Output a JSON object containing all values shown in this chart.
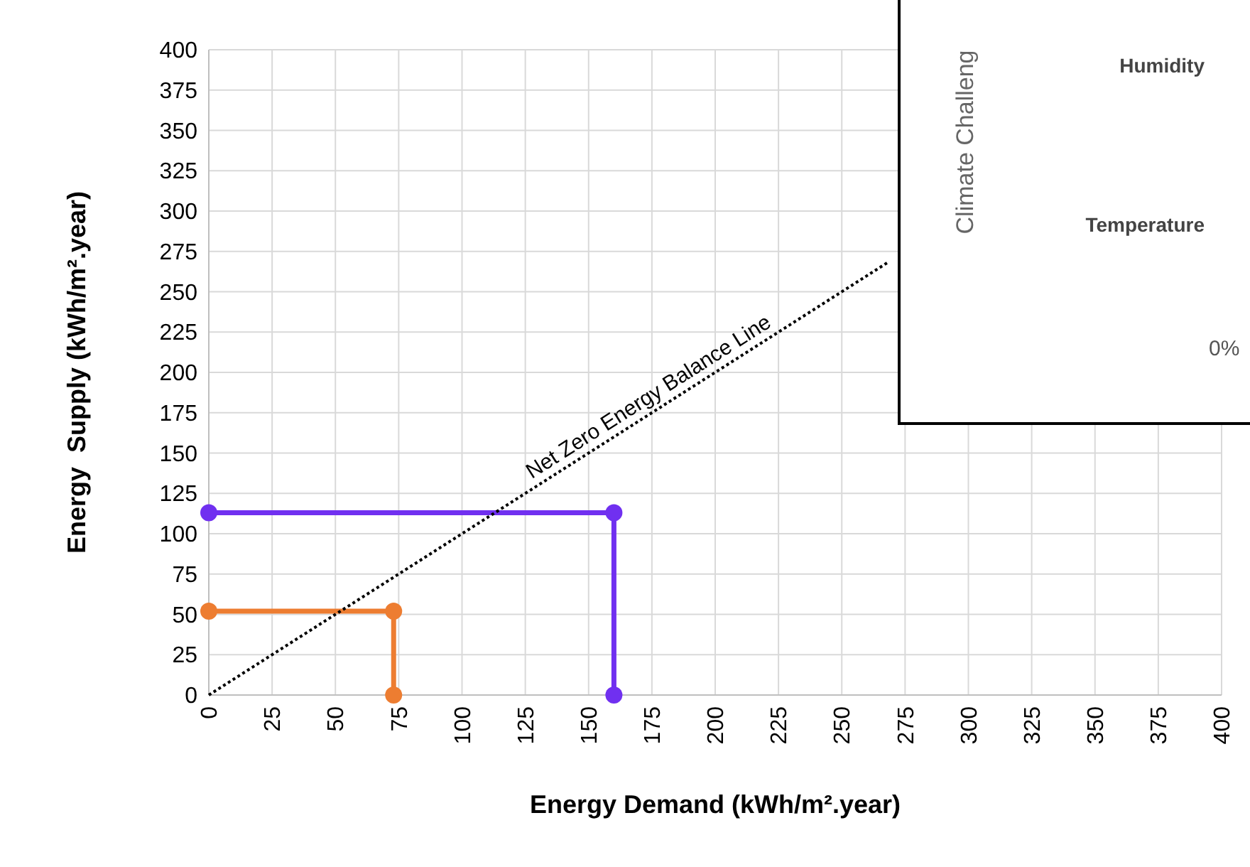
{
  "chart_data": [
    {
      "type": "line",
      "xlabel": "Energy Demand (kWh/m².year)",
      "ylabel": "Energy  Supply (kWh/m².year)",
      "xlim": [
        0,
        400
      ],
      "ylim": [
        0,
        400
      ],
      "xticks": [
        0,
        25,
        50,
        75,
        100,
        125,
        150,
        175,
        200,
        225,
        250,
        275,
        300,
        325,
        350,
        375,
        400
      ],
      "yticks": [
        0,
        25,
        50,
        75,
        100,
        125,
        150,
        175,
        200,
        225,
        250,
        275,
        300,
        325,
        350,
        375,
        400
      ],
      "grid": true,
      "marker": "circle",
      "series": [
        {
          "color": "#ed7d31",
          "x": [
            0,
            73,
            73
          ],
          "values": [
            52,
            52,
            0
          ]
        },
        {
          "color": "#7030f0",
          "x": [
            0,
            160,
            160
          ],
          "values": [
            113,
            113,
            0
          ]
        },
        {
          "name": "Net Zero Energy Balance Line",
          "color": "#000000",
          "x": [
            0,
            268
          ],
          "values": [
            0,
            268
          ],
          "marker": "none",
          "line_style": "dotted"
        }
      ]
    },
    {
      "type": "other",
      "ylabel": "Climate Challeng",
      "categories": [
        "Humidity",
        "Temperature"
      ],
      "annotations": [
        "0%"
      ]
    }
  ]
}
